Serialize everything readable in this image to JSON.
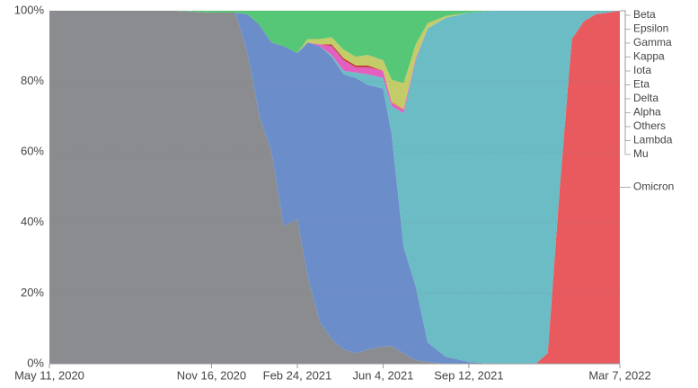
{
  "chart_data": {
    "type": "stacked_area",
    "x": [
      "2020-05-11",
      "2020-08-03",
      "2020-10-05",
      "2020-11-16",
      "2020-12-14",
      "2020-12-28",
      "2021-01-11",
      "2021-01-25",
      "2021-02-08",
      "2021-02-24",
      "2021-03-08",
      "2021-03-22",
      "2021-04-05",
      "2021-04-19",
      "2021-05-03",
      "2021-05-17",
      "2021-06-04",
      "2021-06-14",
      "2021-06-28",
      "2021-07-12",
      "2021-07-26",
      "2021-08-16",
      "2021-09-12",
      "2021-10-11",
      "2021-11-08",
      "2021-11-29",
      "2021-12-13",
      "2021-12-27",
      "2022-01-10",
      "2022-01-24",
      "2022-02-07",
      "2022-02-21",
      "2022-03-07"
    ],
    "series": [
      {
        "name": "Omicron",
        "color": "#e85a5e",
        "values": [
          0,
          0,
          0,
          0,
          0,
          0,
          0,
          0,
          0,
          0,
          0,
          0,
          0,
          0,
          0,
          0,
          0,
          0,
          0,
          0,
          0,
          0,
          0,
          0,
          0,
          0,
          3,
          50,
          92,
          97,
          99,
          99.5,
          100
        ]
      },
      {
        "name": "Mu",
        "color": "#e3923b",
        "values": [
          0,
          0,
          0,
          0,
          0,
          0,
          0,
          0,
          0,
          0,
          0,
          0,
          0,
          0,
          0,
          0,
          0,
          0,
          0,
          0,
          0,
          0,
          0,
          0,
          0,
          0,
          0,
          0,
          0,
          0,
          0,
          0,
          0
        ]
      },
      {
        "name": "Lambda",
        "color": "#9c6ad0",
        "values": [
          0,
          0,
          0,
          0,
          0,
          0,
          0,
          0,
          0,
          0,
          0,
          0,
          0,
          0,
          0,
          0,
          0,
          0,
          0,
          0,
          0,
          0,
          0,
          0,
          0,
          0,
          0,
          0,
          0,
          0,
          0,
          0,
          0
        ]
      },
      {
        "name": "Others",
        "color": "#8a8c90",
        "values": [
          100,
          100,
          100,
          99.5,
          99.5,
          88,
          70,
          60,
          39,
          41,
          25,
          12,
          7,
          4,
          3,
          4,
          5,
          5,
          3,
          1,
          0.5,
          0,
          0,
          0,
          0,
          0,
          0,
          0,
          0,
          0,
          0,
          0,
          0
        ]
      },
      {
        "name": "Alpha",
        "color": "#6b8ecb",
        "values": [
          0,
          0,
          0,
          0,
          0,
          11,
          26,
          31,
          51,
          47,
          66,
          78,
          80,
          78,
          78,
          75,
          73,
          60,
          30,
          21,
          5.5,
          2,
          0.5,
          0,
          0,
          0,
          0,
          0,
          0,
          0,
          0,
          0,
          0
        ]
      },
      {
        "name": "Delta",
        "color": "#6bbcc5",
        "values": [
          0,
          0,
          0,
          0,
          0,
          0,
          0,
          0,
          0,
          0,
          0,
          0,
          0.5,
          1,
          1.5,
          3,
          3,
          8,
          38,
          64,
          89,
          96,
          99,
          100,
          100,
          100,
          97,
          50,
          8,
          3,
          1,
          0.5,
          0
        ]
      },
      {
        "name": "Eta",
        "color": "#e35fc0",
        "values": [
          0,
          0,
          0,
          0,
          0,
          0,
          0,
          0,
          0,
          0,
          0,
          0.5,
          2.5,
          3,
          1.5,
          2,
          2,
          1,
          1,
          0.5,
          0,
          0,
          0,
          0,
          0,
          0,
          0,
          0,
          0,
          0,
          0,
          0,
          0
        ]
      },
      {
        "name": "Iota",
        "color": "#c0392b",
        "values": [
          0,
          0,
          0,
          0,
          0,
          0,
          0,
          0,
          0,
          0,
          0,
          0,
          0.5,
          0.5,
          0.5,
          0.5,
          0,
          0,
          0,
          0,
          0,
          0,
          0,
          0,
          0,
          0,
          0,
          0,
          0,
          0,
          0,
          0,
          0
        ]
      },
      {
        "name": "Kappa",
        "color": "#d4b43a",
        "values": [
          0,
          0,
          0,
          0,
          0,
          0,
          0,
          0,
          0,
          0,
          0,
          0,
          0,
          0,
          0,
          0,
          0,
          0.5,
          0.5,
          0,
          0,
          0,
          0,
          0,
          0,
          0,
          0,
          0,
          0,
          0,
          0,
          0,
          0
        ]
      },
      {
        "name": "Gamma",
        "color": "#c4cc6a",
        "values": [
          0,
          0,
          0,
          0,
          0,
          0,
          0,
          0,
          0,
          0,
          1,
          1.5,
          2,
          2.5,
          2.5,
          3,
          3,
          6,
          7,
          4,
          1.5,
          0.5,
          0,
          0,
          0,
          0,
          0,
          0,
          0,
          0,
          0,
          0,
          0
        ]
      },
      {
        "name": "Epsilon",
        "color": "#55c776",
        "values": [
          0,
          0,
          0,
          0.5,
          0.5,
          1,
          4,
          9,
          10,
          12,
          8,
          8,
          7.5,
          11,
          13,
          12.5,
          14,
          19.5,
          20.5,
          9.5,
          3.5,
          1.5,
          0.5,
          0,
          0,
          0,
          0,
          0,
          0,
          0,
          0,
          0,
          0
        ]
      },
      {
        "name": "Beta",
        "color": "#2ea84a",
        "values": [
          0,
          0,
          0,
          0,
          0,
          0,
          0,
          0,
          0,
          0,
          0,
          0,
          0,
          0,
          0,
          0,
          0,
          0,
          0,
          0,
          0,
          0,
          0,
          0,
          0,
          0,
          0,
          0,
          0,
          0,
          0,
          0,
          0
        ]
      }
    ],
    "xlim": [
      "2020-05-11",
      "2022-03-07"
    ],
    "xticks": [
      {
        "value": "2020-05-11",
        "label": "May 11, 2020"
      },
      {
        "value": "2020-11-16",
        "label": "Nov 16, 2020"
      },
      {
        "value": "2021-02-24",
        "label": "Feb 24, 2021"
      },
      {
        "value": "2021-06-04",
        "label": "Jun 4, 2021"
      },
      {
        "value": "2021-09-12",
        "label": "Sep 12, 2021"
      },
      {
        "value": "2022-03-07",
        "label": "Mar 7, 2022"
      }
    ],
    "ylim": [
      0,
      100
    ],
    "yticks": [
      {
        "value": 0,
        "label": "0%"
      },
      {
        "value": 20,
        "label": "20%"
      },
      {
        "value": 40,
        "label": "40%"
      },
      {
        "value": 60,
        "label": "60%"
      },
      {
        "value": 80,
        "label": "80%"
      },
      {
        "value": 100,
        "label": "100%"
      }
    ],
    "grid": true
  }
}
